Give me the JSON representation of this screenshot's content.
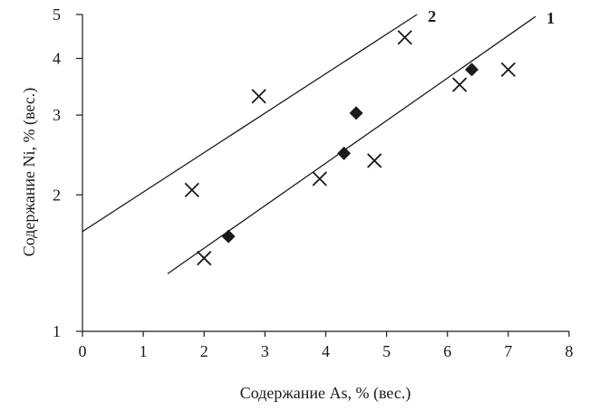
{
  "chart_data": {
    "type": "scatter",
    "xlabel": "Содержание As, % (вес.)",
    "ylabel": "Содержание Ni, % (вес.)",
    "xlim": [
      0,
      8
    ],
    "ylim": [
      1,
      5
    ],
    "yscale": "log",
    "xticks": [
      "0",
      "1",
      "2",
      "3",
      "4",
      "5",
      "6",
      "7",
      "8"
    ],
    "yticks": [
      {
        "value": 1,
        "label": "1"
      },
      {
        "value": 2,
        "label": "2"
      },
      {
        "value": 3,
        "label": "3"
      },
      {
        "value": 4,
        "label": "4"
      },
      {
        "value": 5,
        "label": "5"
      }
    ],
    "grid": false,
    "series": [
      {
        "marker": "x",
        "points": [
          [
            1.8,
            2.05
          ],
          [
            2.9,
            3.3
          ],
          [
            5.3,
            4.45
          ],
          [
            2.0,
            1.45
          ],
          [
            3.9,
            2.17
          ],
          [
            4.8,
            2.38
          ],
          [
            6.2,
            3.5
          ],
          [
            7.0,
            3.78
          ]
        ]
      },
      {
        "marker": "diamond",
        "points": [
          [
            2.4,
            1.62
          ],
          [
            4.3,
            2.47
          ],
          [
            4.5,
            3.03
          ],
          [
            6.4,
            3.78
          ]
        ]
      }
    ],
    "fit_lines": [
      {
        "label": "1",
        "from": [
          1.4,
          1.34
        ],
        "to": [
          7.45,
          4.95
        ]
      },
      {
        "label": "2",
        "from": [
          0.0,
          1.66
        ],
        "to": [
          5.5,
          5.0
        ]
      }
    ]
  }
}
